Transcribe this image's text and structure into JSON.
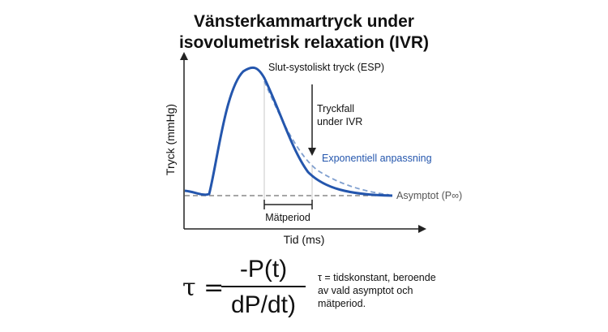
{
  "title": {
    "line1": "Vänsterkammartryck under",
    "line2": "isovolumetrisk relaxation (IVR)"
  },
  "axes": {
    "ylabel": "Tryck (mmHg)",
    "xlabel": "Tid (ms)"
  },
  "annotations": {
    "esp": "Slut-systoliskt tryck (ESP)",
    "drop_line1": "Tryckfall",
    "drop_line2": "under IVR",
    "fit": "Exponentiell anpassning",
    "asymptote": "Asymptot (P∞)",
    "period": "Mätperiod"
  },
  "formula": {
    "lhs": "τ =",
    "numerator": "-P(t)",
    "denominator": "dP/dt)"
  },
  "note": {
    "line1": "τ = tidskonstant, beroende",
    "line2": "av vald asymptot och",
    "line3": "mätperiod."
  },
  "colors": {
    "curve": "#2456ad",
    "fit": "#7f9fcf",
    "axis": "#222222",
    "asymptote": "#888888",
    "fit_label": "#2456ad"
  }
}
